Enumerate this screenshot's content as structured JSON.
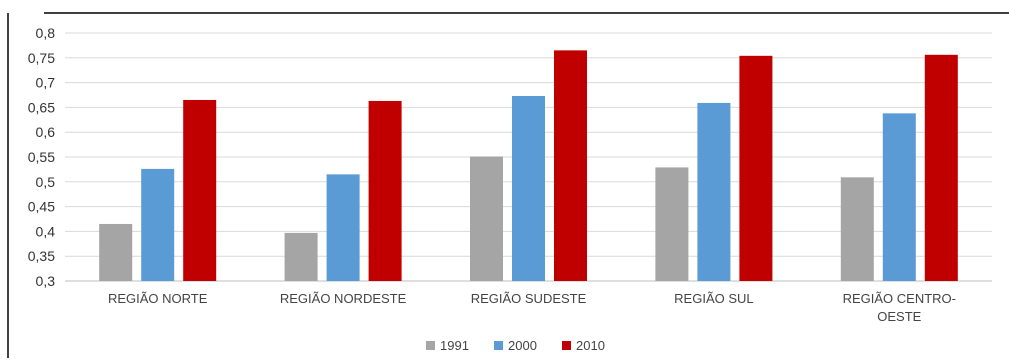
{
  "chart_data": {
    "type": "bar",
    "title": "",
    "xlabel": "",
    "ylabel": "",
    "categories": [
      "REGIÃO NORTE",
      "REGIÃO NORDESTE",
      "REGIÃO SUDESTE",
      "REGIÃO SUL",
      "REGIÃO CENTRO-OESTE"
    ],
    "category_lines": [
      [
        "REGIÃO NORTE"
      ],
      [
        "REGIÃO NORDESTE"
      ],
      [
        "REGIÃO SUDESTE"
      ],
      [
        "REGIÃO SUL"
      ],
      [
        "REGIÃO CENTRO-",
        "OESTE"
      ]
    ],
    "series": [
      {
        "name": "1991",
        "color": "#a5a5a5",
        "values": [
          0.415,
          0.397,
          0.551,
          0.529,
          0.509
        ]
      },
      {
        "name": "2000",
        "color": "#5b9bd5",
        "values": [
          0.526,
          0.515,
          0.673,
          0.659,
          0.638
        ]
      },
      {
        "name": "2010",
        "color": "#c00000",
        "values": [
          0.665,
          0.663,
          0.765,
          0.754,
          0.756
        ]
      }
    ],
    "ylim": [
      0.3,
      0.8
    ],
    "yticks": [
      "0,8",
      "0,75",
      "0,7",
      "0,65",
      "0,6",
      "0,55",
      "0,5",
      "0,45",
      "0,4",
      "0,35",
      "0,3"
    ],
    "grid": true,
    "legend_position": "bottom"
  }
}
